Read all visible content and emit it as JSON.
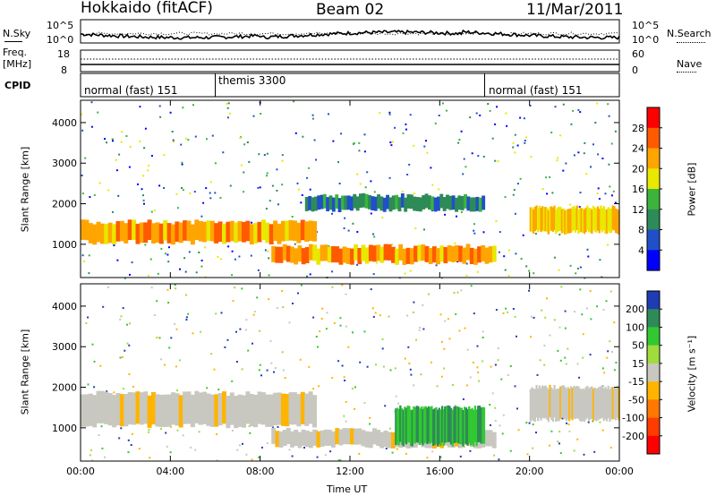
{
  "header": {
    "station": "Hokkaido (fitACF)",
    "beam": "Beam 02",
    "date": "11/Mar/2011"
  },
  "strips": {
    "nsky_label": "N.Sky",
    "nsearch_label": "N.Search",
    "noise_ticks": [
      "10^5",
      "10^0"
    ],
    "freq_label_1": "Freq.",
    "freq_label_2": "[MHz]",
    "freq_ticks": [
      "18",
      "8"
    ],
    "nave_label": "Nave",
    "nave_ticks": [
      "60",
      "0"
    ],
    "cpid_label": "CPID",
    "cpid_segments": [
      {
        "label": "normal (fast) 151",
        "start_hour": 0,
        "end_hour": 6.0
      },
      {
        "label": "themis 3300",
        "start_hour": 6.0,
        "end_hour": 18.0
      },
      {
        "label": "normal (fast) 151",
        "start_hour": 18.0,
        "end_hour": 24.0
      }
    ]
  },
  "chart_data": [
    {
      "type": "heatmap",
      "panel": "power",
      "ylabel": "Slant Range [km]",
      "xlabel": "",
      "x_range_hours": [
        0,
        24
      ],
      "ylim": [
        180,
        4550
      ],
      "yticks": [
        1000,
        2000,
        3000,
        4000
      ],
      "colorbar_label": "Power [dB]",
      "colorbar_ticks": [
        "28",
        "24",
        "20",
        "16",
        "12",
        "8",
        "4"
      ],
      "colorbar_colors": [
        "#ff0000",
        "#ff5a00",
        "#ffa500",
        "#e8e800",
        "#3cb43c",
        "#2d8b57",
        "#2050c8",
        "#0000ff"
      ],
      "bands": [
        {
          "hours": [
            0,
            10.5
          ],
          "range_km": [
            1050,
            1550
          ],
          "level_db": 26
        },
        {
          "hours": [
            8.5,
            18.5
          ],
          "range_km": [
            550,
            950
          ],
          "level_db": 27
        },
        {
          "hours": [
            10,
            18
          ],
          "range_km": [
            1850,
            2200
          ],
          "level_db": 14
        },
        {
          "hours": [
            20,
            24
          ],
          "range_km": [
            1300,
            1900
          ],
          "level_db": 24
        }
      ]
    },
    {
      "type": "heatmap",
      "panel": "velocity",
      "ylabel": "Slant Range [km]",
      "xlabel": "Time UT",
      "x_range_hours": [
        0,
        24
      ],
      "xticks": [
        "00:00",
        "04:00",
        "08:00",
        "12:00",
        "16:00",
        "20:00",
        "00:00"
      ],
      "ylim": [
        180,
        4550
      ],
      "yticks": [
        1000,
        2000,
        3000,
        4000
      ],
      "colorbar_label": "Velocity [m s⁻¹]",
      "colorbar_ticks": [
        "200",
        "100",
        "50",
        "15",
        "-15",
        "-50",
        "-100",
        "-200"
      ],
      "colorbar_colors": [
        "#1e3cb4",
        "#2e8b57",
        "#32c832",
        "#a0dc3c",
        "#c8c8c0",
        "#ffb400",
        "#ff7800",
        "#ff3c00",
        "#ff0000"
      ],
      "bands": [
        {
          "hours": [
            0,
            10.5
          ],
          "range_km": [
            1050,
            1850
          ],
          "velocity": 0
        },
        {
          "hours": [
            8.5,
            18.5
          ],
          "range_km": [
            550,
            950
          ],
          "velocity": 0
        },
        {
          "hours": [
            14,
            18
          ],
          "range_km": [
            600,
            1500
          ],
          "velocity": 40
        },
        {
          "hours": [
            20,
            24
          ],
          "range_km": [
            1200,
            2000
          ],
          "velocity": 0
        }
      ]
    }
  ],
  "colors": {
    "frame": "#000000",
    "background": "#ffffff"
  }
}
